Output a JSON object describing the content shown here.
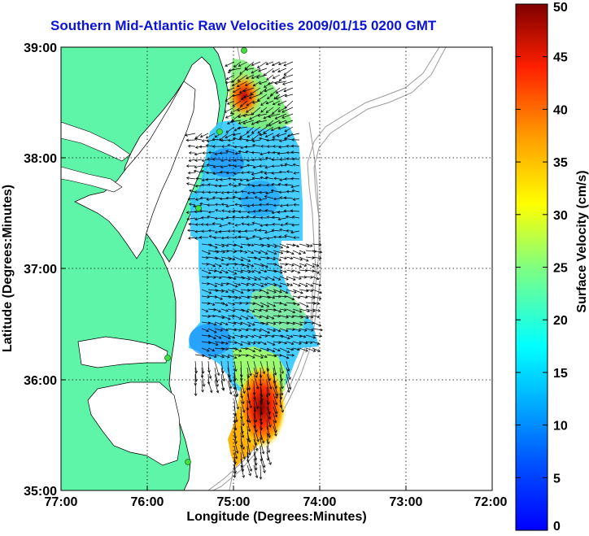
{
  "title": "Southern Mid-Atlantic Raw Velocities 2009/01/15 0200 GMT",
  "x_axis": {
    "label": "Longitude (Degrees:Minutes)",
    "ticks": [
      "77:00",
      "76:00",
      "75:00",
      "74:00",
      "73:00",
      "72:00"
    ]
  },
  "y_axis": {
    "label": "Latitude (Degrees:Minutes)",
    "ticks": [
      "39:00",
      "38:00",
      "37:00",
      "36:00",
      "35:00"
    ]
  },
  "colorbar": {
    "label": "Surface Velocity (cm/s)",
    "ticks": [
      "50",
      "45",
      "40",
      "35",
      "30",
      "25",
      "20",
      "15",
      "10",
      "5",
      "0"
    ],
    "min": 0,
    "max": 50,
    "colormap": "jet"
  },
  "colors": {
    "title": "#0a14d8",
    "land": "#5ff5a8",
    "water": "#ffffff",
    "bathymetry_contour": "#9a9a9a",
    "vectors": "#000000",
    "hf_radar_station": "#44dd44"
  },
  "map": {
    "lon_range": [
      "77:00 W",
      "72:00 W"
    ],
    "lat_range": [
      "35:00 N",
      "39:00 N"
    ],
    "grid": "dotted",
    "stations_shown": 5
  }
}
